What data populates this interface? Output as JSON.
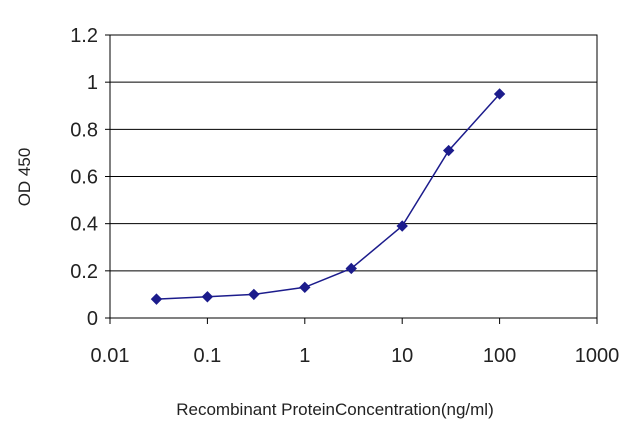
{
  "chart_data": {
    "type": "line",
    "title": "",
    "xlabel": "Recombinant ProteinConcentration(ng/ml)",
    "ylabel": "OD 450",
    "x_scale": "log",
    "xlim": [
      0.01,
      1000
    ],
    "ylim": [
      0,
      1.2
    ],
    "x_ticks": [
      "0.01",
      "0.1",
      "1",
      "10",
      "100",
      "1000"
    ],
    "y_ticks": [
      "0",
      "0.2",
      "0.4",
      "0.6",
      "0.8",
      "1",
      "1.2"
    ],
    "grid": "horizontal",
    "legend": "none",
    "series": [
      {
        "color": "#1c1c8c",
        "marker": "diamond",
        "x": [
          0.03,
          0.1,
          0.3,
          1,
          3,
          10,
          30,
          100
        ],
        "y": [
          0.08,
          0.09,
          0.1,
          0.13,
          0.21,
          0.39,
          0.71,
          0.95
        ]
      }
    ]
  }
}
